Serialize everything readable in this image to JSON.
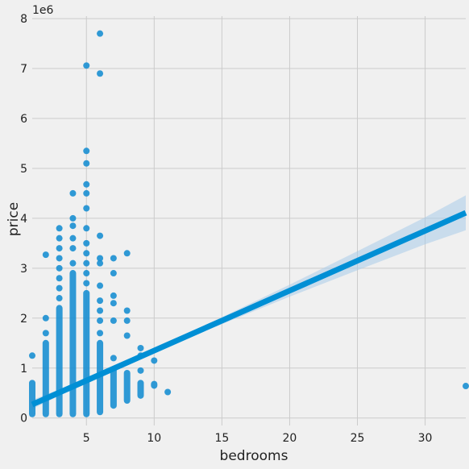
{
  "chart_data": {
    "type": "scatter",
    "title": "",
    "xlabel": "bedrooms",
    "ylabel": "price",
    "y_offset_label": "1e6",
    "xlim": [
      1,
      33
    ],
    "ylim": [
      -0.15,
      8.05
    ],
    "y_scale_factor": 1000000,
    "xticks": [
      5,
      10,
      15,
      20,
      25,
      30
    ],
    "yticks": [
      0,
      1,
      2,
      3,
      4,
      5,
      6,
      7,
      8
    ],
    "grid": true,
    "colors": {
      "points": "#1a8fd1",
      "line": "#008fd5",
      "band": "#a9cce9",
      "background": "#f0f0f0",
      "grid": "#cbcbcb"
    },
    "columns": [
      {
        "x": 1,
        "ymin": 0.08,
        "ymax": 0.7,
        "outliers": [
          1.25
        ]
      },
      {
        "x": 2,
        "ymin": 0.08,
        "ymax": 1.5,
        "outliers": [
          1.7,
          2.0,
          3.27
        ]
      },
      {
        "x": 3,
        "ymin": 0.08,
        "ymax": 2.2,
        "outliers": [
          2.4,
          2.6,
          2.8,
          3.0,
          3.2,
          3.4,
          3.6,
          3.8
        ]
      },
      {
        "x": 4,
        "ymin": 0.08,
        "ymax": 2.9,
        "outliers": [
          3.1,
          3.4,
          3.6,
          3.85,
          4.0,
          4.5
        ]
      },
      {
        "x": 5,
        "ymin": 0.08,
        "ymax": 2.5,
        "outliers": [
          2.7,
          2.9,
          3.1,
          3.3,
          3.5,
          3.8,
          4.2,
          4.5,
          4.68,
          5.1,
          5.35,
          7.06
        ]
      },
      {
        "x": 6,
        "ymin": 0.12,
        "ymax": 1.5,
        "outliers": [
          1.7,
          1.95,
          2.15,
          2.35,
          2.65,
          3.1,
          3.2,
          3.65,
          6.9,
          7.7
        ]
      },
      {
        "x": 7,
        "ymin": 0.25,
        "ymax": 0.95,
        "outliers": [
          1.2,
          1.95,
          2.3,
          2.45,
          2.9,
          3.2
        ]
      },
      {
        "x": 8,
        "ymin": 0.35,
        "ymax": 0.9,
        "outliers": [
          1.65,
          1.95,
          2.15,
          3.3
        ]
      },
      {
        "x": 9,
        "ymin": 0.45,
        "ymax": 0.7,
        "outliers": [
          0.95,
          1.25,
          1.4
        ]
      },
      {
        "x": 10,
        "ymin": 0.65,
        "ymax": 0.68,
        "outliers": [
          1.15
        ]
      },
      {
        "x": 11,
        "ymin": 0.52,
        "ymax": 0.52,
        "outliers": []
      },
      {
        "x": 33,
        "ymin": 0.64,
        "ymax": 0.64,
        "outliers": []
      }
    ],
    "regression": {
      "x": [
        1,
        5,
        10,
        15,
        20,
        25,
        30,
        33
      ],
      "y": [
        0.27,
        0.75,
        1.35,
        1.95,
        2.55,
        3.15,
        3.75,
        4.11
      ],
      "ci_upper": [
        0.36,
        0.79,
        1.39,
        2.02,
        2.67,
        3.34,
        4.02,
        4.46
      ],
      "ci_lower": [
        0.18,
        0.71,
        1.31,
        1.88,
        2.43,
        2.96,
        3.48,
        3.76
      ]
    }
  }
}
